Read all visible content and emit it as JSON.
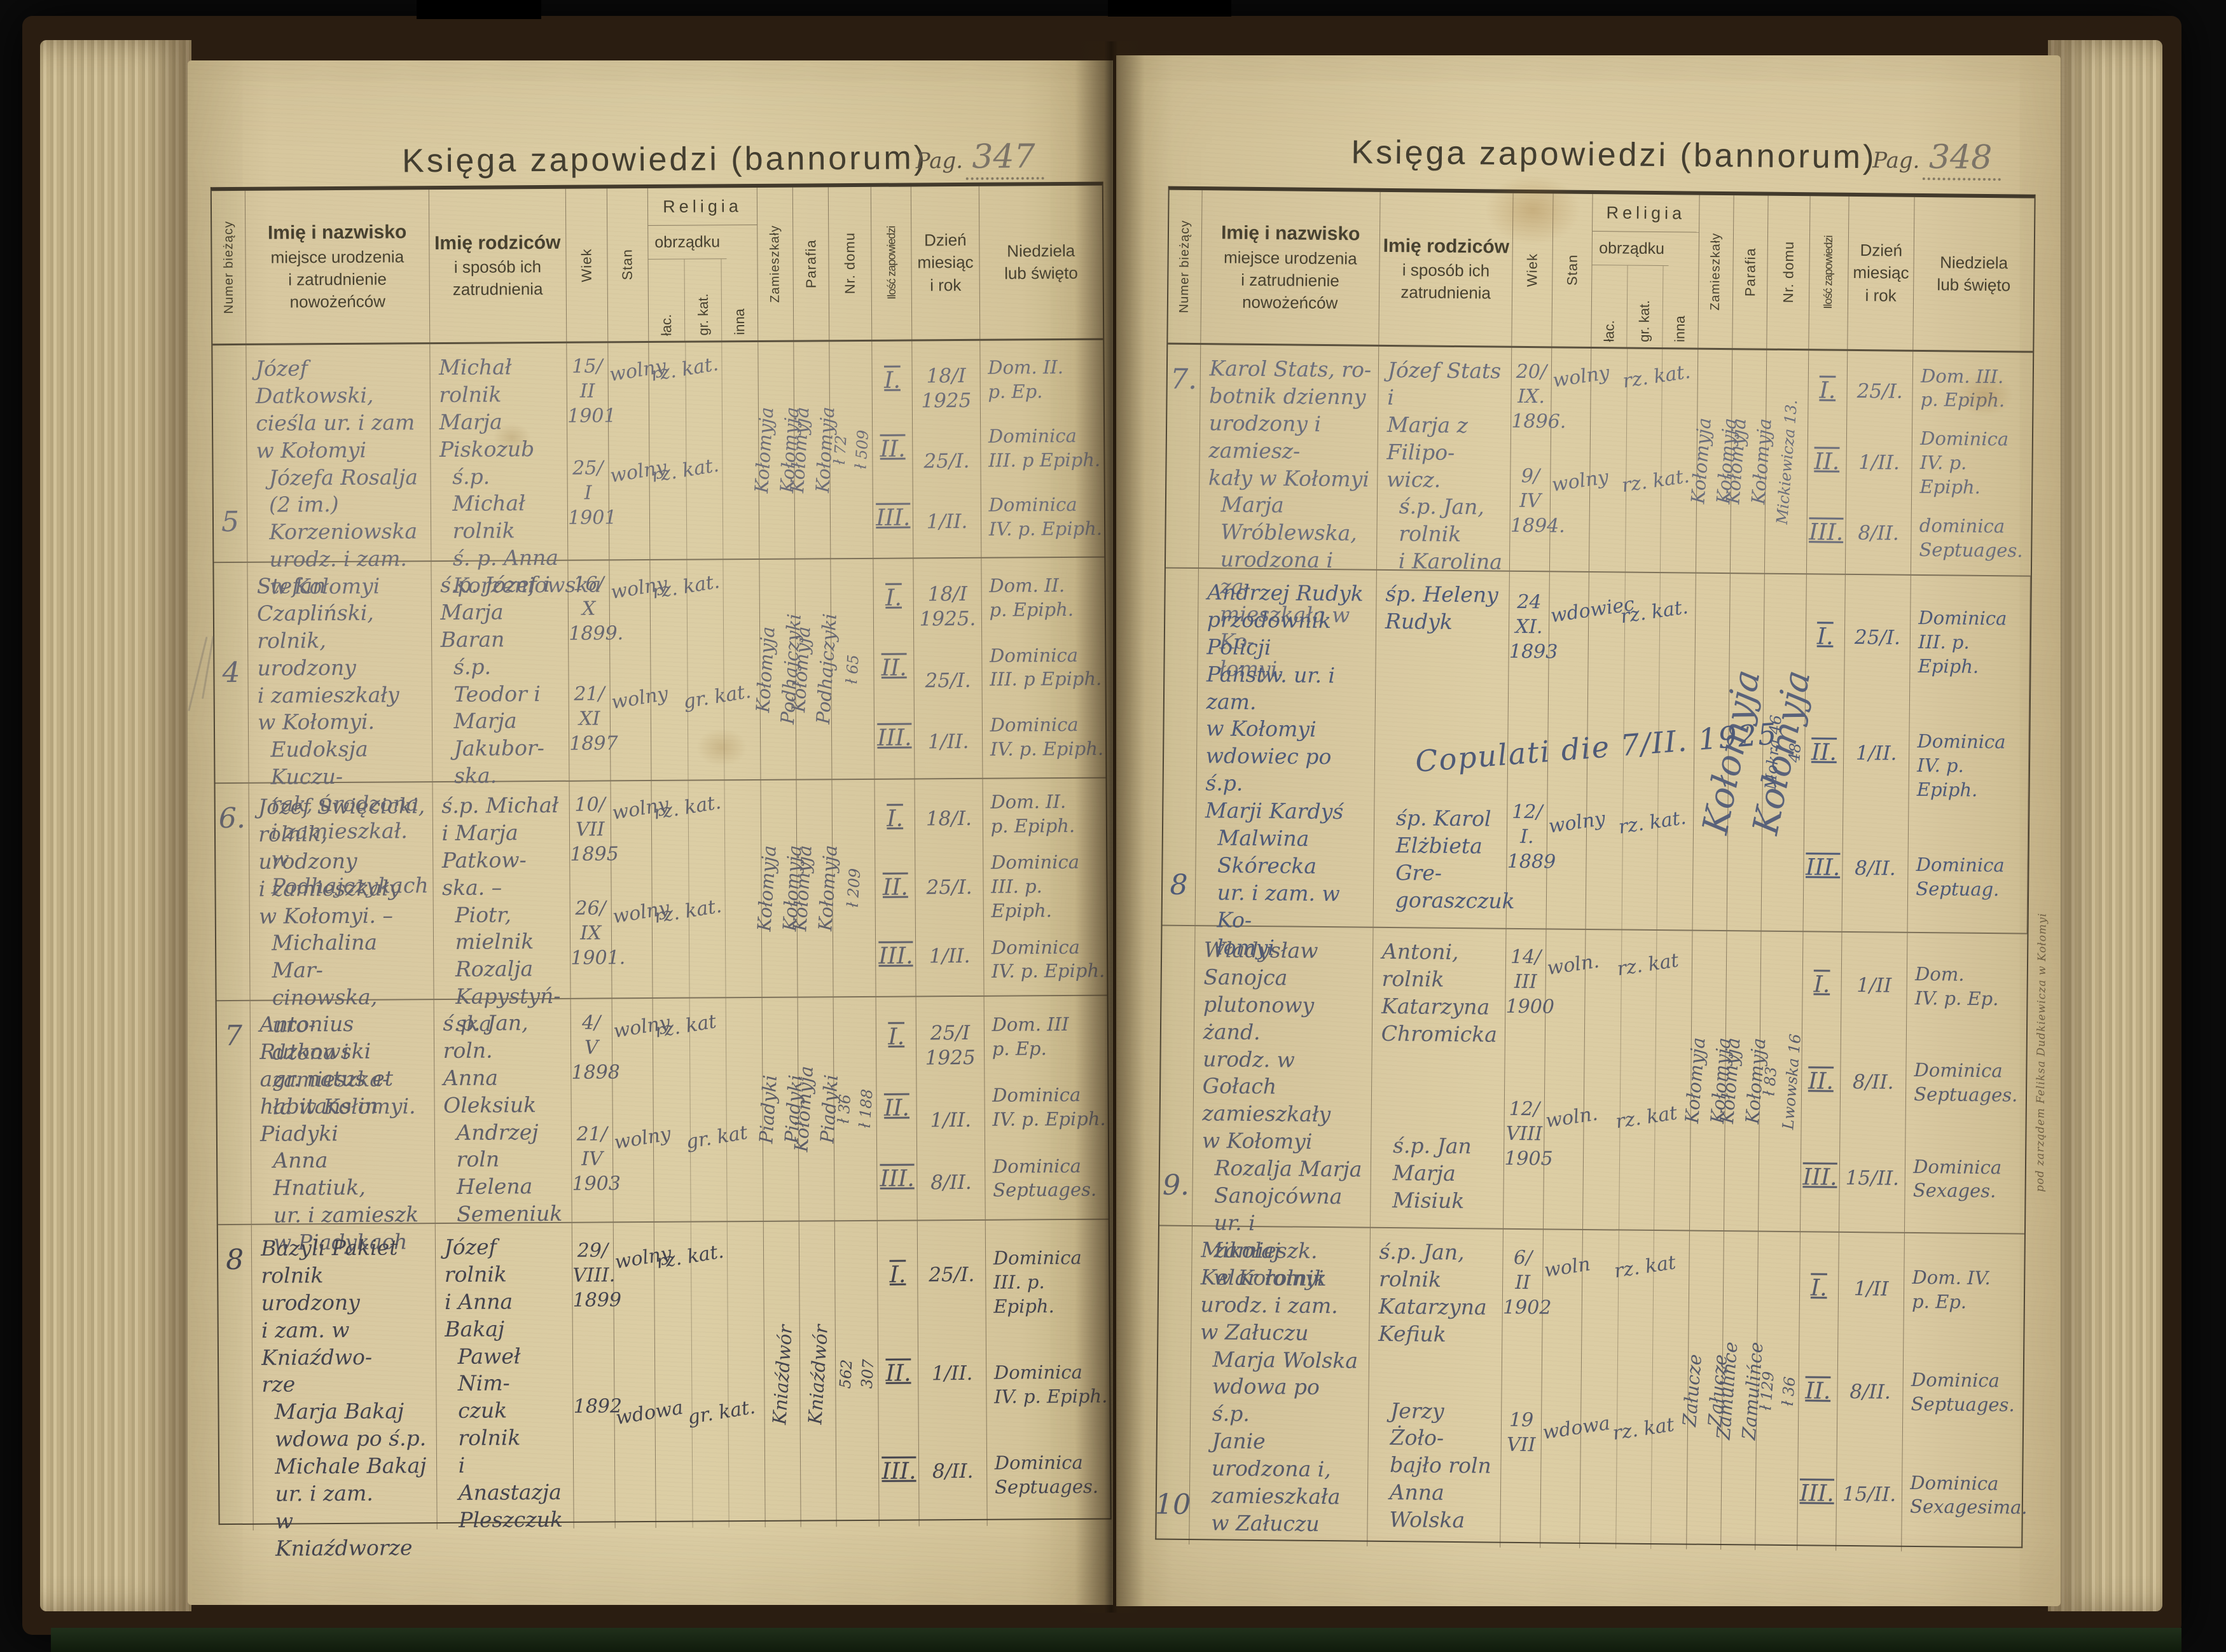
{
  "print": {
    "title": "Księga zapowiedzi (bannorum)",
    "pag_label": "Pag.",
    "columns": {
      "numer": "Numer bieżący",
      "names": [
        "Imię i nazwisko",
        "miejsce urodzenia",
        "i zatrudnienie",
        "nowożeńców"
      ],
      "parents": [
        "Imię rodziców",
        "i sposób ich",
        "zatrudnienia"
      ],
      "wiek": "Wiek",
      "stan": "Stan",
      "religia": "Religia",
      "obrzadku": "obrządku",
      "lac": "łac.",
      "grkat": "gr. kat.",
      "inna": "inna",
      "zamieszkaly": "Zamieszkały",
      "parafia": "Parafia",
      "nrdomu": "Nr. domu",
      "ilosc": "Ilość zapowiedzi",
      "dzien": [
        "Dzień",
        "miesiąc",
        "i rok"
      ],
      "niedziela": [
        "Niedziela",
        "lub święto"
      ]
    }
  },
  "colors": {
    "paper": "#dbcda4",
    "pencil": "#6e6e78",
    "graphite": "#44444e",
    "blue_ink": "#4e5a78",
    "cover": "#2a1d11"
  },
  "pages": [
    {
      "pag": "347",
      "rows": [
        {
          "num": "5",
          "num_pos": "bottom",
          "ink": "#6e6e78",
          "b_off": 52,
          "groom": {
            "name": "Józef\nDatkowski,\ncieśla ur. i zam\nw Kołomyi",
            "rodzice": "Michał rolnik\nMarja Piskozub",
            "wiek": "15/\nII\n1901",
            "stan": "wolny",
            "rel": "rz. kat.",
            "relcol": "lac"
          },
          "bride": {
            "name": "Józefa Rosalja\n(2 im.) Korzeniowska\nurodz. i zam.\nw Kołomyi",
            "rodzice": "ś.p. Michał\nrolnik\nś. p. Anna\nKorzeniowska",
            "wiek": "25/\nI\n1901",
            "stan": "wolny",
            "rel": "rz. kat.",
            "relcol": "lac"
          },
          "zam": [
            "Kołomyja",
            "Kołomyja"
          ],
          "parafia": [
            "Kołomyja",
            "Kołomyja"
          ],
          "dom": [
            "ł 72",
            "ł 509"
          ],
          "zapowiedzi": [
            [
              "I.",
              "18/I\n1925",
              "Dom. II.\np. Ep."
            ],
            [
              "II.",
              "25/I.",
              "Dominica\nIII. p Epiph."
            ],
            [
              "III.",
              "1/II.",
              "Dominica\nIV. p. Epiph."
            ]
          ]
        },
        {
          "num": "4",
          "num_pos": "mid",
          "ink": "#686872",
          "b_off": 55,
          "groom": {
            "name": "Stefan Czapliński,\nrolnik, urodzony\ni zamieszkały\nw Kołomyi.",
            "rodzice": "ś.p. Józef i Marja\nBaran",
            "wiek": "16/\nX\n1899.",
            "stan": "wolny",
            "rel": "rz. kat.",
            "relcol": "lac"
          },
          "bride": {
            "name": "Eudoksja Kuczu-\nrak, urodzona\ni zamieszkał.\nw Podhajczykach",
            "rodzice": "ś.p. Teodor i\nMarja Jakubor-\nska.",
            "wiek": "21/\nXI\n1897",
            "stan": "wolny",
            "rel": "gr. kat.",
            "relcol": "grkat"
          },
          "zam": [
            "Kołomyja",
            "Podhajczyki"
          ],
          "parafia": [
            "Kołomyja",
            "Podhajczyki"
          ],
          "dom": [
            "ł 65"
          ],
          "zapowiedzi": [
            [
              "I.",
              "18/I\n1925.",
              "Dom. II.\np. Epiph."
            ],
            [
              "II.",
              "25/I.",
              "Dominica\nIII. p Epiph."
            ],
            [
              "III.",
              "1/II.",
              "Dominica\nIV. p. Epiph."
            ]
          ]
        },
        {
          "num": "6.",
          "num_pos": "top",
          "ink": "#62626c",
          "b_off": 53,
          "groom": {
            "name": "Józef Święcicki,\nrolnik, urodzony\ni zamieszkały\nw Kołomyi. –",
            "rodzice": "ś.p. Michał\ni Marja Patkow-\nska. –",
            "wiek": "10/\nVII\n1895",
            "stan": "wolny",
            "rel": "rz. kat.",
            "relcol": "lac"
          },
          "bride": {
            "name": "Michalina Mar-\ncinowska, uro-\ndzona i zamieszka-\nła w Kołomyi.",
            "rodzice": "Piotr, mielnik\nRozalja Kapystyń-\nska",
            "wiek": "26/\nIX\n1901.",
            "stan": "wolny",
            "rel": "rz. kat.",
            "relcol": "lac"
          },
          "zam": [
            "Kołomyja",
            "Kołomyja"
          ],
          "parafia": [
            "Kołomyja",
            "Kołomyja"
          ],
          "dom": [
            "ł 209"
          ],
          "zapowiedzi": [
            [
              "I.",
              "18/I.",
              "Dom. II.\np. Epiph."
            ],
            [
              "II.",
              "25/I.",
              "Dominica\nIII. p. Epiph."
            ],
            [
              "III.",
              "1/II.",
              "Dominica\nIV. p. Epiph."
            ]
          ]
        },
        {
          "num": "7",
          "num_pos": "top",
          "ink": "#5e5e68",
          "b_off": 55,
          "groom": {
            "name": "Antonius\nRutkowski\nagr. natus et\nhabitans in\nPiadyki",
            "rodzice": "ś.p. Jan, roln.\nAnna Oleksiuk",
            "wiek": "4/\nV\n1898",
            "stan": "wolny",
            "rel": "rz. kat",
            "relcol": "lac"
          },
          "bride": {
            "name": "Anna\nHnatiuk,\nur. i zamieszk\nw Piadykach",
            "rodzice": "Andrzej roln\nHelena\nSemeniuk",
            "wiek": "21/\nIV\n1903",
            "stan": "wolny",
            "rel": "gr. kat",
            "relcol": "grkat"
          },
          "zam": [
            "Piadyki",
            "Piadyki"
          ],
          "parafia": [
            "Kołomyja",
            "Piadyki"
          ],
          "dom": [
            "ł 36",
            "ł 188"
          ],
          "zapowiedzi": [
            [
              "I.",
              "25/I\n1925",
              "Dom. III\np. Ep."
            ],
            [
              "II.",
              "1/II.",
              "Dominica\nIV. p. Epiph."
            ],
            [
              "III.",
              "8/II.",
              "Dominica\nSeptuages."
            ]
          ]
        },
        {
          "num": "8",
          "num_pos": "top",
          "ink": "#44444e",
          "b_off": 56,
          "groom": {
            "name": "Bazyli Pakiet\nrolnik urodzony\ni zam. w Kniaźdwo-\nrze",
            "rodzice": "Józef rolnik\ni Anna Bakaj",
            "wiek": "29/\nVIII.\n1899",
            "stan": "wolny",
            "rel": "rz. kat.",
            "relcol": "lac"
          },
          "bride": {
            "name": "Marja Bakaj\nwdowa po ś.p.\nMichale Bakaj\nur. i zam.\nw Kniaźdworze",
            "rodzice": "Paweł Nim-\nczuk rolnik\ni Anastazja\nPleszczuk",
            "wiek": "1892",
            "stan": "wdowa",
            "rel": "gr. kat.",
            "relcol": "grkat"
          },
          "zam": [
            "Kniaźdwór"
          ],
          "parafia": [
            "Kniaźdwór"
          ],
          "dom": [
            "562",
            "307"
          ],
          "zapowiedzi": [
            [
              "I.",
              "25/I.",
              "Dominica\nIII. p. Epiph."
            ],
            [
              "II.",
              "1/II.",
              "Dominica\nIV. p. Epiph."
            ],
            [
              "III.",
              "8/II.",
              "Dominica\nSeptuages."
            ]
          ]
        }
      ]
    },
    {
      "pag": "348",
      "printer_note": "pod zarządem Feliksa Dudkiewicza w Kołomyi",
      "rows": [
        {
          "num": "7.",
          "num_pos": "top",
          "ink": "#6b6e7c",
          "b_off": 52,
          "groom": {
            "name": "Karol Stats, ro-\nbotnik dzienny\nurodzony i zamiesz-\nkały w Kołomyi",
            "rodzice": "Józef Stats i\nMarja z Filipo-\nwicz.",
            "wiek": "20/\nIX.\n1896.",
            "stan": "wolny",
            "rel": "rz. kat.",
            "relcol": "grkat"
          },
          "bride": {
            "name": "Marja Wróblewska,\nurodzona i za-\nmieszkała w Ko-\nłomyi.",
            "rodzice": "ś.p. Jan, rolnik\ni Karolina",
            "wiek": "9/\nIV\n1894.",
            "stan": "wolny",
            "rel": "rz. kat.",
            "relcol": "grkat"
          },
          "zam": [
            "Kołomyja",
            "Kołomyja"
          ],
          "parafia": [
            "Kołomyja",
            "Kołomyja"
          ],
          "dom": [
            "Mickiewicza 13."
          ],
          "zapowiedzi": [
            [
              "I.",
              "25/I.",
              "Dom. III.\np. Epiph."
            ],
            [
              "II.",
              "1/II.",
              "Dominica\nIV. p. Epiph."
            ],
            [
              "III.",
              "8/II.",
              "dominica\nSeptuages."
            ]
          ]
        },
        {
          "num": "8",
          "num_pos": "bottom",
          "ink": "#4e5a78",
          "b_off": 64,
          "groom": {
            "name": "Andrzej Rudyk\nprzodownik Policji\nPaństw. ur. i zam.\nw Kołomyi\nwdowiec po ś.p.\nMarji Kardyś",
            "rodzice": "śp. Heleny\nRudyk",
            "wiek": "24\nXI.\n1893",
            "stan": "wdowiec",
            "rel": "rz. kat.",
            "relcol": "grkat"
          },
          "bride": {
            "name": "Malwina\nSkórecka\nur. i zam. w Ko-\nłomyi",
            "rodzice": "śp. Karol\nElżbieta Gre-\ngoraszczuk",
            "wiek": "12/\nI.\n1889",
            "stan": "wolny",
            "rel": "rz. kat.",
            "relcol": "grkat"
          },
          "zam": [],
          "parafia": [],
          "dom": [
            "Mokra 46",
            "48"
          ],
          "big": [
            "Kołomyja",
            "Kołomyja"
          ],
          "note": "Copulati die 7/II. 1925",
          "zapowiedzi": [
            [
              "I.",
              "25/I.",
              "Dominica\nIII. p. Epiph."
            ],
            [
              "II.",
              "1/II.",
              "Dominica\nIV. p. Epiph."
            ],
            [
              "III.",
              "8/II.",
              "Dominica\nSeptuag."
            ]
          ]
        },
        {
          "num": "9.",
          "num_pos": "bottom",
          "ink": "#5a5d6b",
          "b_off": 56,
          "groom": {
            "name": "Władysław\nSanojca\nplutonowy żand.\nurodz. w Gołach\nzamieszkały\nw Kołomyi",
            "rodzice": "Antoni,\nrolnik\nKatarzyna\nChromicka",
            "wiek": "14/\nIII\n1900",
            "stan": "woln.",
            "rel": "rz. kat",
            "relcol": "grkat"
          },
          "bride": {
            "name": "Rozalja Marja\nSanojcówna\nur. i zamieszk.\nw Kołomyi",
            "rodzice": "ś.p. Jan\nMarja\nMisiuk",
            "wiek": "12/\nVIII\n1905",
            "stan": "woln.",
            "rel": "rz. kat",
            "relcol": "grkat"
          },
          "zam": [
            "Kołomyja",
            "Kołomyja"
          ],
          "parafia": [
            "Kołomyja",
            "Kołomyja"
          ],
          "dom": [
            "ł 83",
            "Lwowska 16"
          ],
          "zapowiedzi": [
            [
              "I.",
              "1/II",
              "Dom.\nIV. p. Ep."
            ],
            [
              "II.",
              "8/II.",
              "Dominica\nSeptuages."
            ],
            [
              "III.",
              "15/II.",
              "Dominica\nSexages."
            ]
          ]
        },
        {
          "num": "10",
          "num_pos": "bottom",
          "ink": "#565a6a",
          "b_off": 56,
          "groom": {
            "name": "Mikołaj\nKelar rolnik\nurodz. i zam.\nw Załuczu",
            "rodzice": "ś.p. Jan, rolnik\nKatarzyna\nKefiuk",
            "wiek": "6/\nII\n1902",
            "stan": "woln",
            "rel": "rz. kat",
            "relcol": "grkat"
          },
          "bride": {
            "name": "Marja Wolska\nwdowa po ś.p.\nJanie\nurodzona i,\nzamieszkała\nw Załuczu",
            "rodzice": "Jerzy Żoło-\nbajło roln\nAnna Wolska",
            "wiek": "19\nVII",
            "stan": "wdowa",
            "rel": "rz. kat",
            "relcol": "grkat"
          },
          "zam": [
            "Załucze",
            "Załucze"
          ],
          "parafia": [
            "Zamulińce",
            "Zamulińce"
          ],
          "dom": [
            "ł 129",
            "ł 36"
          ],
          "zapowiedzi": [
            [
              "I.",
              "1/II",
              "Dom. IV.\np. Ep."
            ],
            [
              "II.",
              "8/II.",
              "Dominica\nSeptuages."
            ],
            [
              "III.",
              "15/II.",
              "Dominica\nSexagesima."
            ]
          ]
        }
      ]
    }
  ]
}
